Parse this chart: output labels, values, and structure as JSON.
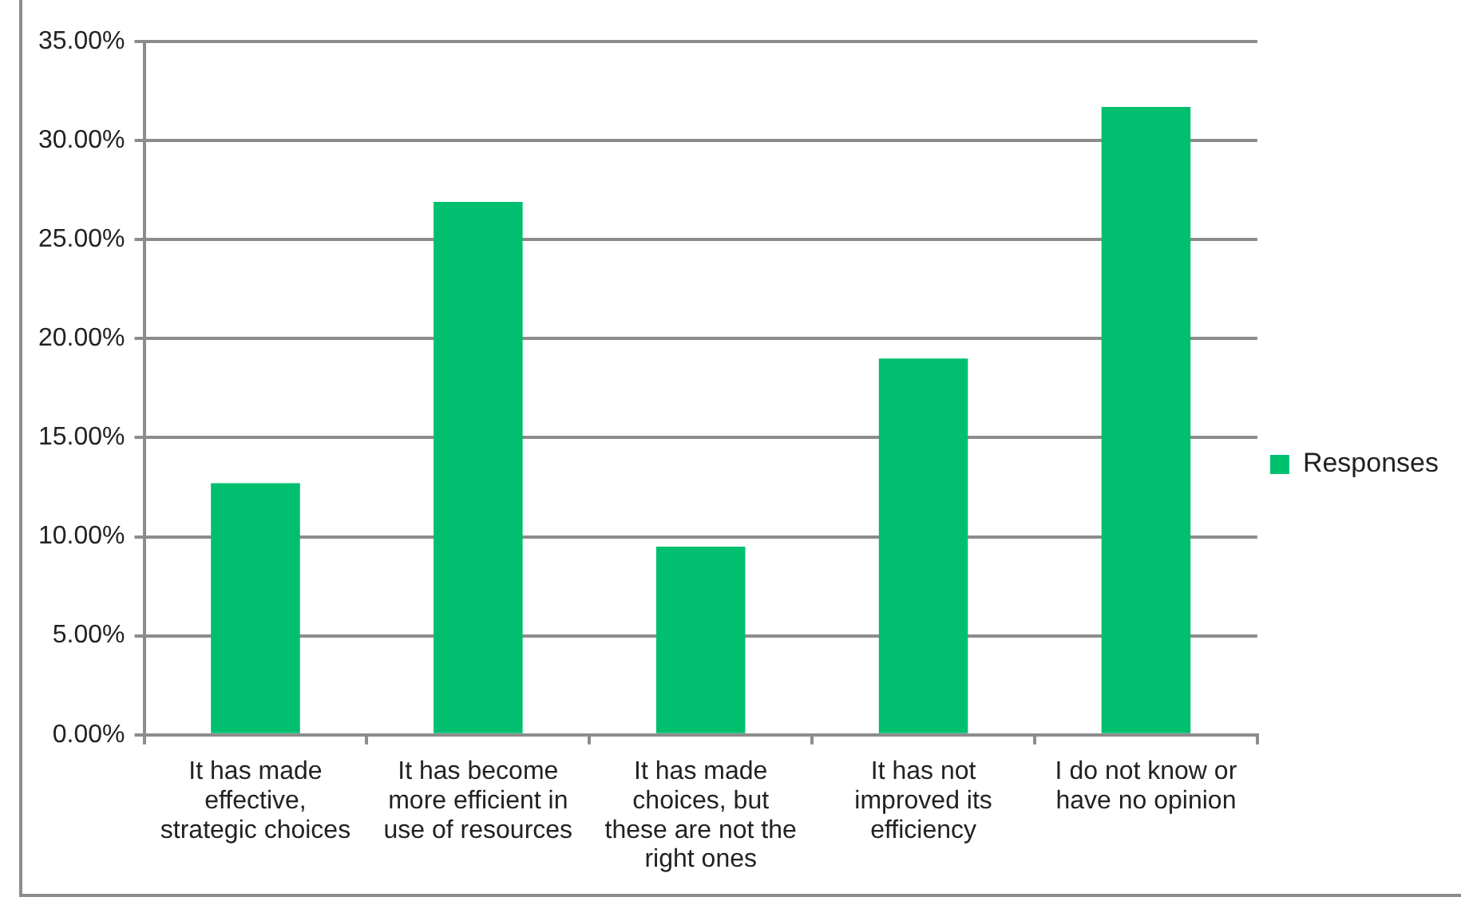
{
  "chart_data": {
    "type": "bar",
    "categories": [
      "It has made effective, strategic choices",
      "It has become more efficient in use of resources",
      "It has made choices, but these are not the right ones",
      "It has not improved its efficiency",
      "I do not know or have no opinion"
    ],
    "series": [
      {
        "name": "Responses",
        "color": "#00bf6f",
        "values": [
          12.7,
          26.9,
          9.5,
          19.0,
          31.7
        ]
      }
    ],
    "ylim": [
      0,
      35
    ],
    "yticks": [
      {
        "value": 0,
        "label": "0.00%"
      },
      {
        "value": 5,
        "label": "5.00%"
      },
      {
        "value": 10,
        "label": "10.00%"
      },
      {
        "value": 15,
        "label": "15.00%"
      },
      {
        "value": 20,
        "label": "20.00%"
      },
      {
        "value": 25,
        "label": "25.00%"
      },
      {
        "value": 30,
        "label": "30.00%"
      },
      {
        "value": 35,
        "label": "35.00%"
      }
    ],
    "grid": "y",
    "legend": "right"
  }
}
